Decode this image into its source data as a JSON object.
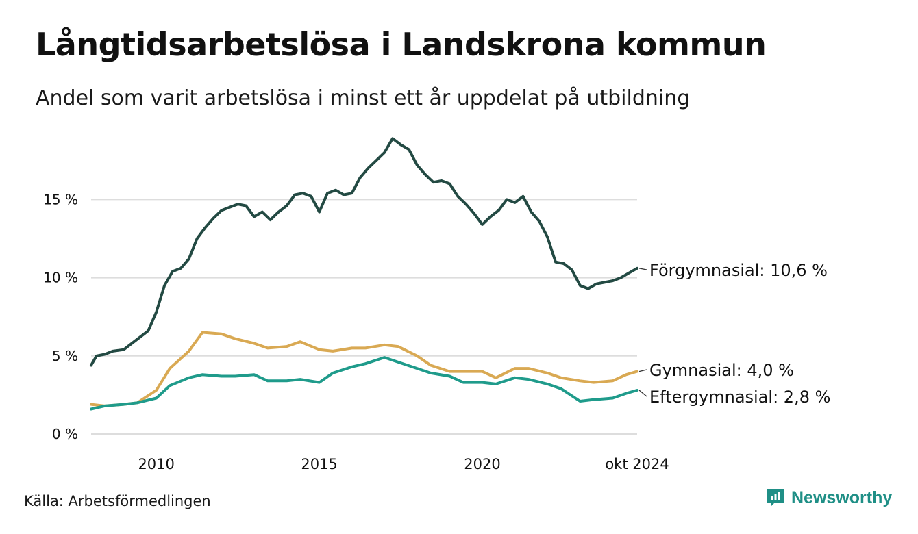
{
  "title": "Långtidsarbetslösa i Landskrona kommun",
  "subtitle": "Andel som varit arbetslösa i minst ett år uppdelat på utbildning",
  "source": "Källa: Arbetsförmedlingen",
  "brand": {
    "name": "Newsworthy",
    "icon": "newsworthy-chart-bubble-icon"
  },
  "colors": {
    "grid": "#dddddd",
    "text": "#111111",
    "brand": "#1f8f86"
  },
  "chart_data": {
    "type": "line",
    "title": "Långtidsarbetslösa i Landskrona kommun",
    "subtitle": "Andel som varit arbetslösa i minst ett år uppdelat på utbildning",
    "xlabel": "",
    "ylabel": "",
    "x_range": [
      "2008-01",
      "2024-10"
    ],
    "ylim": [
      0,
      19
    ],
    "y_ticks": [
      {
        "value": 0,
        "label": "0 %"
      },
      {
        "value": 5,
        "label": "5 %"
      },
      {
        "value": 10,
        "label": "10 %"
      },
      {
        "value": 15,
        "label": "15 %"
      }
    ],
    "x_ticks": [
      {
        "value": "2010-01",
        "label": "2010"
      },
      {
        "value": "2015-01",
        "label": "2015"
      },
      {
        "value": "2020-01",
        "label": "2020"
      },
      {
        "value": "2024-10",
        "label": "okt 2024"
      }
    ],
    "grid": true,
    "legend": "direct labels at line ends",
    "series": [
      {
        "name": "Förgymnasial",
        "end_label": "Förgymnasial: 10,6 %",
        "color": "#234a43",
        "points": [
          [
            "2008-01",
            4.4
          ],
          [
            "2008-03",
            5.0
          ],
          [
            "2008-06",
            5.1
          ],
          [
            "2008-09",
            5.3
          ],
          [
            "2009-01",
            5.4
          ],
          [
            "2009-04",
            5.8
          ],
          [
            "2009-07",
            6.2
          ],
          [
            "2009-10",
            6.6
          ],
          [
            "2010-01",
            7.8
          ],
          [
            "2010-04",
            9.5
          ],
          [
            "2010-07",
            10.4
          ],
          [
            "2010-10",
            10.6
          ],
          [
            "2011-01",
            11.2
          ],
          [
            "2011-04",
            12.5
          ],
          [
            "2011-07",
            13.2
          ],
          [
            "2011-10",
            13.8
          ],
          [
            "2012-01",
            14.3
          ],
          [
            "2012-04",
            14.5
          ],
          [
            "2012-07",
            14.7
          ],
          [
            "2012-10",
            14.6
          ],
          [
            "2013-01",
            13.9
          ],
          [
            "2013-04",
            14.2
          ],
          [
            "2013-07",
            13.7
          ],
          [
            "2013-10",
            14.2
          ],
          [
            "2014-01",
            14.6
          ],
          [
            "2014-04",
            15.3
          ],
          [
            "2014-07",
            15.4
          ],
          [
            "2014-10",
            15.2
          ],
          [
            "2015-01",
            14.2
          ],
          [
            "2015-04",
            15.4
          ],
          [
            "2015-07",
            15.6
          ],
          [
            "2015-10",
            15.3
          ],
          [
            "2016-01",
            15.4
          ],
          [
            "2016-04",
            16.4
          ],
          [
            "2016-07",
            17.0
          ],
          [
            "2016-10",
            17.5
          ],
          [
            "2017-01",
            18.0
          ],
          [
            "2017-04",
            18.9
          ],
          [
            "2017-07",
            18.5
          ],
          [
            "2017-10",
            18.2
          ],
          [
            "2018-01",
            17.2
          ],
          [
            "2018-04",
            16.6
          ],
          [
            "2018-07",
            16.1
          ],
          [
            "2018-10",
            16.2
          ],
          [
            "2019-01",
            16.0
          ],
          [
            "2019-04",
            15.2
          ],
          [
            "2019-07",
            14.7
          ],
          [
            "2019-10",
            14.1
          ],
          [
            "2020-01",
            13.4
          ],
          [
            "2020-04",
            13.9
          ],
          [
            "2020-07",
            14.3
          ],
          [
            "2020-10",
            15.0
          ],
          [
            "2021-01",
            14.8
          ],
          [
            "2021-04",
            15.2
          ],
          [
            "2021-07",
            14.2
          ],
          [
            "2021-10",
            13.6
          ],
          [
            "2022-01",
            12.6
          ],
          [
            "2022-04",
            11.0
          ],
          [
            "2022-07",
            10.9
          ],
          [
            "2022-10",
            10.5
          ],
          [
            "2023-01",
            9.5
          ],
          [
            "2023-04",
            9.3
          ],
          [
            "2023-07",
            9.6
          ],
          [
            "2023-10",
            9.7
          ],
          [
            "2024-01",
            9.8
          ],
          [
            "2024-04",
            10.0
          ],
          [
            "2024-07",
            10.3
          ],
          [
            "2024-10",
            10.6
          ]
        ]
      },
      {
        "name": "Gymnasial",
        "end_label": "Gymnasial:  4,0 %",
        "color": "#d9a953",
        "points": [
          [
            "2008-01",
            1.9
          ],
          [
            "2008-06",
            1.8
          ],
          [
            "2009-01",
            1.9
          ],
          [
            "2009-06",
            2.0
          ],
          [
            "2010-01",
            2.8
          ],
          [
            "2010-06",
            4.2
          ],
          [
            "2011-01",
            5.3
          ],
          [
            "2011-06",
            6.5
          ],
          [
            "2012-01",
            6.4
          ],
          [
            "2012-06",
            6.1
          ],
          [
            "2013-01",
            5.8
          ],
          [
            "2013-06",
            5.5
          ],
          [
            "2014-01",
            5.6
          ],
          [
            "2014-06",
            5.9
          ],
          [
            "2015-01",
            5.4
          ],
          [
            "2015-06",
            5.3
          ],
          [
            "2016-01",
            5.5
          ],
          [
            "2016-06",
            5.5
          ],
          [
            "2017-01",
            5.7
          ],
          [
            "2017-06",
            5.6
          ],
          [
            "2018-01",
            5.0
          ],
          [
            "2018-06",
            4.4
          ],
          [
            "2019-01",
            4.0
          ],
          [
            "2019-06",
            4.0
          ],
          [
            "2020-01",
            4.0
          ],
          [
            "2020-06",
            3.6
          ],
          [
            "2021-01",
            4.2
          ],
          [
            "2021-06",
            4.2
          ],
          [
            "2022-01",
            3.9
          ],
          [
            "2022-06",
            3.6
          ],
          [
            "2023-01",
            3.4
          ],
          [
            "2023-06",
            3.3
          ],
          [
            "2024-01",
            3.4
          ],
          [
            "2024-06",
            3.8
          ],
          [
            "2024-10",
            4.0
          ]
        ]
      },
      {
        "name": "Eftergymnasial",
        "end_label": "Eftergymnasial:  2,8 %",
        "color": "#1f9b8b",
        "points": [
          [
            "2008-01",
            1.6
          ],
          [
            "2008-06",
            1.8
          ],
          [
            "2009-01",
            1.9
          ],
          [
            "2009-06",
            2.0
          ],
          [
            "2010-01",
            2.3
          ],
          [
            "2010-06",
            3.1
          ],
          [
            "2011-01",
            3.6
          ],
          [
            "2011-06",
            3.8
          ],
          [
            "2012-01",
            3.7
          ],
          [
            "2012-06",
            3.7
          ],
          [
            "2013-01",
            3.8
          ],
          [
            "2013-06",
            3.4
          ],
          [
            "2014-01",
            3.4
          ],
          [
            "2014-06",
            3.5
          ],
          [
            "2015-01",
            3.3
          ],
          [
            "2015-06",
            3.9
          ],
          [
            "2016-01",
            4.3
          ],
          [
            "2016-06",
            4.5
          ],
          [
            "2017-01",
            4.9
          ],
          [
            "2017-06",
            4.6
          ],
          [
            "2018-01",
            4.2
          ],
          [
            "2018-06",
            3.9
          ],
          [
            "2019-01",
            3.7
          ],
          [
            "2019-06",
            3.3
          ],
          [
            "2020-01",
            3.3
          ],
          [
            "2020-06",
            3.2
          ],
          [
            "2021-01",
            3.6
          ],
          [
            "2021-06",
            3.5
          ],
          [
            "2022-01",
            3.2
          ],
          [
            "2022-06",
            2.9
          ],
          [
            "2023-01",
            2.1
          ],
          [
            "2023-06",
            2.2
          ],
          [
            "2024-01",
            2.3
          ],
          [
            "2024-06",
            2.6
          ],
          [
            "2024-10",
            2.8
          ]
        ]
      }
    ]
  }
}
